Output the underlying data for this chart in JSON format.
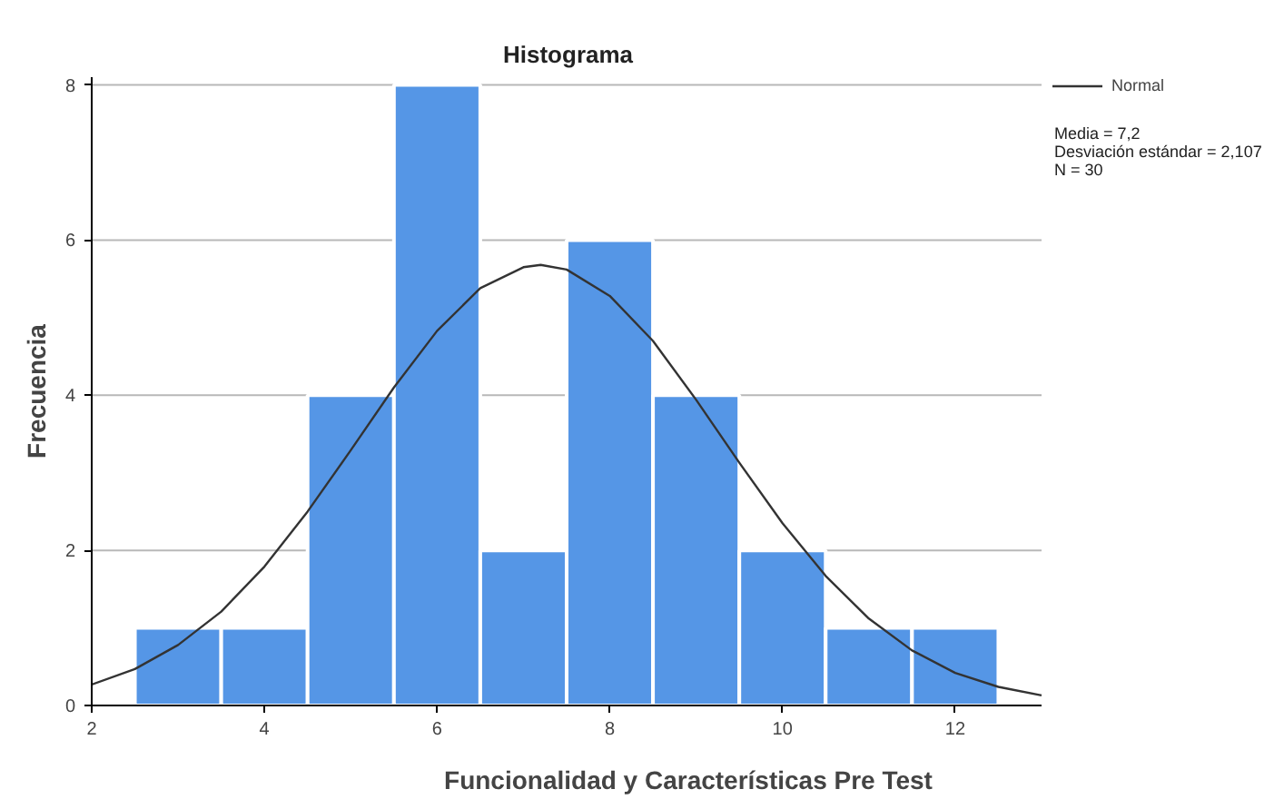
{
  "chart_data": {
    "type": "histogram",
    "title": "Histograma",
    "xlabel": "Funcionalidad y Características Pre Test",
    "ylabel": "Frecuencia",
    "bins": [
      2.5,
      3.5,
      4.5,
      5.5,
      6.5,
      7.5,
      8.5,
      9.5,
      10.5,
      11.5,
      12.5
    ],
    "values": [
      1,
      1,
      4,
      8,
      2,
      6,
      4,
      2,
      1,
      1
    ],
    "color": "#5596e6",
    "series": [
      {
        "name": "Normal",
        "type": "line",
        "color": "#333333",
        "x": [
          2,
          2.5,
          3,
          3.5,
          4,
          4.5,
          5,
          5.5,
          6,
          6.5,
          7,
          7.2,
          7.5,
          8,
          8.5,
          9,
          9.5,
          10,
          10.5,
          11,
          11.5,
          12,
          12.5,
          13
        ],
        "values": [
          0.27,
          0.47,
          0.78,
          1.21,
          1.79,
          2.5,
          3.29,
          4.1,
          4.83,
          5.38,
          5.65,
          5.68,
          5.62,
          5.28,
          4.7,
          3.94,
          3.13,
          2.35,
          1.67,
          1.12,
          0.71,
          0.42,
          0.24,
          0.13
        ]
      }
    ],
    "annotations": [
      "Media = 7,2",
      "Desviación estándar = 2,107",
      "N = 30"
    ],
    "xlim": [
      2,
      13
    ],
    "ylim": [
      0,
      8.1
    ],
    "xticks": [
      2,
      4,
      6,
      8,
      10,
      12
    ],
    "yticks": [
      0,
      2,
      4,
      6,
      8
    ],
    "grid": "y",
    "legend": "top right"
  }
}
